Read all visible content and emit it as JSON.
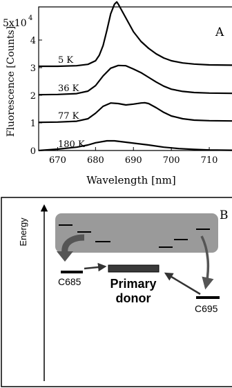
{
  "chart_data": {
    "type": "line",
    "panel_label": "A",
    "xlabel": "Wavelength [nm]",
    "ylabel": "Fluorescence [Counts]",
    "y_multiplier": "5x10",
    "y_multiplier_exp": "4",
    "xlim": [
      665,
      716
    ],
    "ylim": [
      0,
      5.2
    ],
    "x_ticks": [
      670,
      680,
      690,
      700,
      710
    ],
    "y_ticks": [
      0,
      1,
      2,
      3,
      4
    ],
    "grid": false,
    "series": [
      {
        "name": "5 K",
        "x": [
          665,
          670,
          675,
          678,
          680,
          681,
          682,
          683,
          684,
          685,
          685.6,
          686,
          687,
          688,
          689,
          690,
          692,
          694,
          696,
          698,
          700,
          703,
          706,
          710,
          716
        ],
        "y": [
          3.05,
          3.05,
          3.07,
          3.12,
          3.25,
          3.45,
          3.8,
          4.35,
          4.95,
          5.3,
          5.38,
          5.3,
          5.05,
          4.8,
          4.55,
          4.3,
          3.95,
          3.7,
          3.5,
          3.35,
          3.25,
          3.17,
          3.13,
          3.1,
          3.09
        ]
      },
      {
        "name": "36 K",
        "x": [
          665,
          670,
          675,
          678,
          680,
          682,
          684,
          686,
          688,
          690,
          692,
          694,
          696,
          698,
          700,
          703,
          706,
          710,
          716
        ],
        "y": [
          2.02,
          2.03,
          2.06,
          2.15,
          2.35,
          2.7,
          2.98,
          3.08,
          3.07,
          2.95,
          2.82,
          2.65,
          2.48,
          2.33,
          2.22,
          2.14,
          2.1,
          2.08,
          2.07
        ]
      },
      {
        "name": "77 K",
        "x": [
          665,
          670,
          675,
          678,
          680,
          682,
          684,
          686,
          688,
          690,
          692,
          693,
          694,
          696,
          698,
          700,
          703,
          706,
          710,
          716
        ],
        "y": [
          1.02,
          1.03,
          1.06,
          1.15,
          1.35,
          1.6,
          1.72,
          1.7,
          1.65,
          1.68,
          1.72,
          1.73,
          1.7,
          1.55,
          1.38,
          1.25,
          1.15,
          1.1,
          1.08,
          1.07
        ]
      },
      {
        "name": "180 K",
        "x": [
          665,
          670,
          675,
          678,
          680,
          683,
          685,
          688,
          691,
          694,
          698,
          702,
          706,
          710,
          716
        ],
        "y": [
          0.0,
          0.05,
          0.12,
          0.2,
          0.28,
          0.35,
          0.35,
          0.3,
          0.25,
          0.2,
          0.12,
          0.07,
          0.04,
          0.02,
          0.01
        ]
      }
    ]
  },
  "diagram": {
    "panel_label": "B",
    "axis_label": "Energy",
    "primary_donor_line1": "Primary",
    "primary_donor_line2": "donor",
    "left_state_label": "C685",
    "right_state_label": "C695",
    "box_color": "#9a9a9a",
    "line_color": "#000000",
    "arrow_color": "#555555"
  }
}
